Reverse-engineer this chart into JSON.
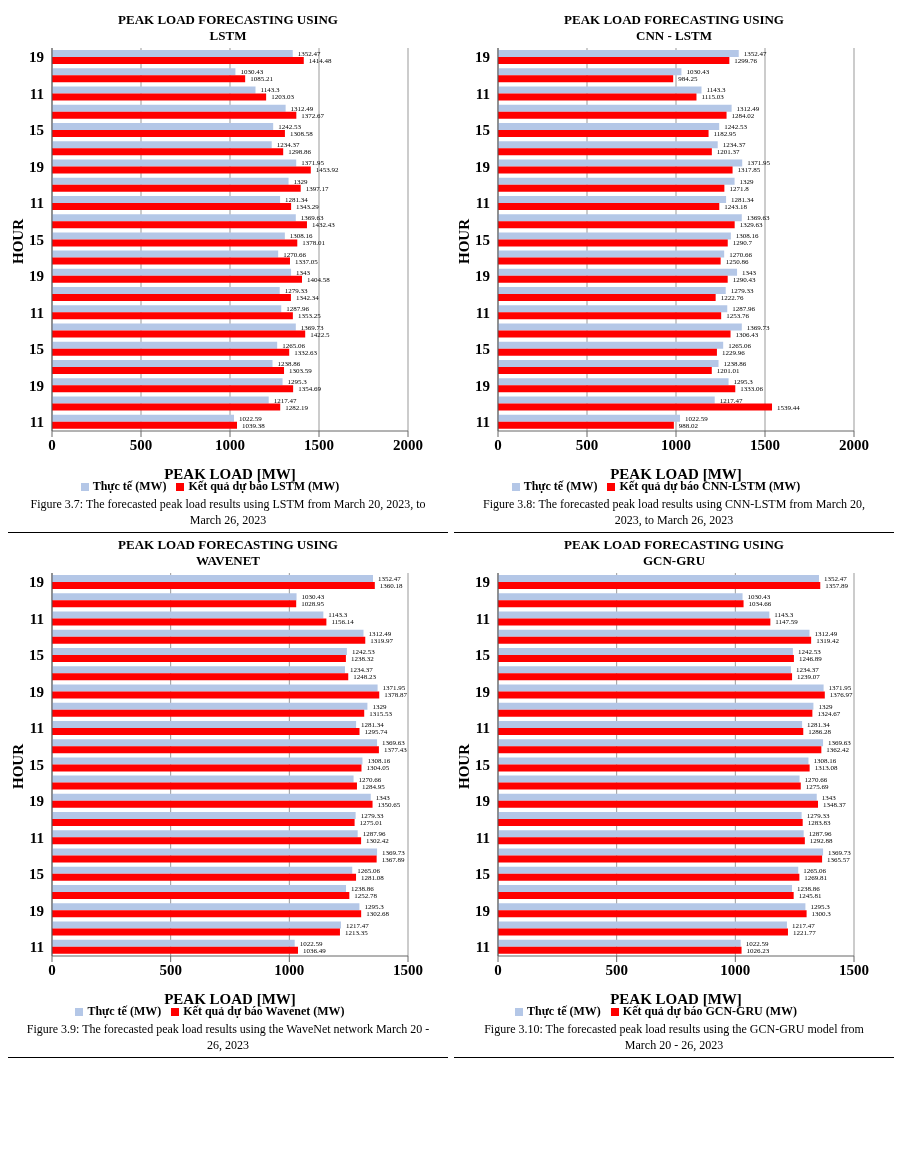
{
  "chart_data": [
    {
      "type": "bar",
      "orientation": "horizontal",
      "title": "PEAK LOAD FORECASTING USING LSTM",
      "xlabel": "PEAK LOAD [MW]",
      "ylabel": "HOUR",
      "categories": [
        "19",
        null,
        "11",
        null,
        "15",
        null,
        "19",
        null,
        "11",
        null,
        "15",
        null,
        "19",
        null,
        "11",
        null,
        "15",
        null,
        "19",
        null,
        "11"
      ],
      "series": [
        {
          "name": "Thực tế (MW)",
          "color": "#b4c7e7",
          "values": [
            1352.47,
            1030.43,
            1143.3,
            1312.49,
            1242.53,
            1234.37,
            1371.95,
            1329,
            1281.34,
            1369.63,
            1308.16,
            1270.66,
            1343,
            1279.33,
            1287.96,
            1369.73,
            1265.06,
            1238.86,
            1295.3,
            1217.47,
            1022.59
          ]
        },
        {
          "name": "Kết quả dự báo LSTM (MW)",
          "color": "#ff0000",
          "values": [
            1414.48,
            1085.21,
            1203.03,
            1372.67,
            1308.58,
            1298.86,
            1453.92,
            1397.17,
            1343.29,
            1432.43,
            1378.01,
            1337.05,
            1404.58,
            1342.34,
            1353.25,
            1422.5,
            1332.63,
            1303.59,
            1354.69,
            1282.19,
            1039.38
          ]
        }
      ],
      "xlim": [
        0,
        2000
      ],
      "xticks": [
        0,
        500,
        1000,
        1500,
        2000
      ],
      "grid": "x",
      "legend": "bottom",
      "data_labels": true,
      "annotations": [
        "Figure 3.7: The forecasted peak load results using LSTM from March 20, 2023, to March 26, 2023"
      ]
    },
    {
      "type": "bar",
      "orientation": "horizontal",
      "title": "PEAK LOAD FORECASTING USING CNN - LSTM",
      "xlabel": "PEAK LOAD [MW]",
      "ylabel": "HOUR",
      "categories": [
        "19",
        null,
        "11",
        null,
        "15",
        null,
        "19",
        null,
        "11",
        null,
        "15",
        null,
        "19",
        null,
        "11",
        null,
        "15",
        null,
        "19",
        null,
        "11"
      ],
      "series": [
        {
          "name": "Thực tế (MW)",
          "color": "#b4c7e7",
          "values": [
            1352.47,
            1030.43,
            1143.3,
            1312.49,
            1242.53,
            1234.37,
            1371.95,
            1329,
            1281.34,
            1369.63,
            1308.16,
            1270.66,
            1343,
            1279.33,
            1287.96,
            1369.73,
            1265.06,
            1238.86,
            1295.3,
            1217.47,
            1022.59
          ]
        },
        {
          "name": "Kết quả dự báo CNN-LSTM (MW)",
          "color": "#ff0000",
          "values": [
            1299.76,
            984.25,
            1115.03,
            1284.02,
            1182.95,
            1201.37,
            1317.85,
            1271.8,
            1243.18,
            1329.63,
            1290.7,
            1250.86,
            1290.43,
            1222.76,
            1253.76,
            1306.43,
            1229.96,
            1201.01,
            1333.06,
            1539.44,
            988.02
          ]
        }
      ],
      "xlim": [
        0,
        2000
      ],
      "xticks": [
        0,
        500,
        1000,
        1500,
        2000
      ],
      "grid": "x",
      "legend": "bottom",
      "data_labels": true,
      "annotations": [
        "Figure 3.8: The forecasted peak load results using CNN-LSTM from March 20, 2023, to March 26, 2023"
      ]
    },
    {
      "type": "bar",
      "orientation": "horizontal",
      "title": "PEAK LOAD FORECASTING USING WAVENET",
      "xlabel": "PEAK LOAD [MW]",
      "ylabel": "HOUR",
      "categories": [
        "19",
        null,
        "11",
        null,
        "15",
        null,
        "19",
        null,
        "11",
        null,
        "15",
        null,
        "19",
        null,
        "11",
        null,
        "15",
        null,
        "19",
        null,
        "11"
      ],
      "series": [
        {
          "name": "Thực tế (MW)",
          "color": "#b4c7e7",
          "values": [
            1352.47,
            1030.43,
            1143.3,
            1312.49,
            1242.53,
            1234.37,
            1371.95,
            1329,
            1281.34,
            1369.63,
            1308.16,
            1270.66,
            1343,
            1279.33,
            1287.96,
            1369.73,
            1265.06,
            1238.86,
            1295.3,
            1217.47,
            1022.59
          ]
        },
        {
          "name": "Kết quả dự báo Wavenet (MW)",
          "color": "#ff0000",
          "values": [
            1360.18,
            1028.95,
            1156.14,
            1319.97,
            1238.32,
            1248.23,
            1378.87,
            1315.53,
            1295.74,
            1377.43,
            1304.05,
            1284.95,
            1350.65,
            1275.01,
            1302.42,
            1367.89,
            1281.08,
            1252.78,
            1302.68,
            1213.35,
            1036.49
          ]
        }
      ],
      "xlim": [
        0,
        1500
      ],
      "xticks": [
        0,
        500,
        1000,
        1500
      ],
      "grid": "x",
      "legend": "bottom",
      "data_labels": true,
      "annotations": [
        "Figure 3.9: The forecasted peak load results using the WaveNet network March 20 - 26, 2023"
      ]
    },
    {
      "type": "bar",
      "orientation": "horizontal",
      "title": "PEAK LOAD FORECASTING USING GCN-GRU",
      "xlabel": "PEAK LOAD [MW]",
      "ylabel": "HOUR",
      "categories": [
        "19",
        null,
        "11",
        null,
        "15",
        null,
        "19",
        null,
        "11",
        null,
        "15",
        null,
        "19",
        null,
        "11",
        null,
        "15",
        null,
        "19",
        null,
        "11"
      ],
      "series": [
        {
          "name": "Thực tế (MW)",
          "color": "#b4c7e7",
          "values": [
            1352.47,
            1030.43,
            1143.3,
            1312.49,
            1242.53,
            1234.37,
            1371.95,
            1329,
            1281.34,
            1369.63,
            1308.16,
            1270.66,
            1343,
            1279.33,
            1287.96,
            1369.73,
            1265.06,
            1238.86,
            1295.3,
            1217.47,
            1022.59
          ]
        },
        {
          "name": "Kết quả dự báo GCN-GRU (MW)",
          "color": "#ff0000",
          "values": [
            1357.89,
            1034.66,
            1147.59,
            1319.42,
            1246.89,
            1239.07,
            1376.97,
            1324.67,
            1286.28,
            1362.42,
            1313.08,
            1275.69,
            1348.37,
            1283.83,
            1292.88,
            1365.57,
            1269.81,
            1245.81,
            1300.3,
            1221.77,
            1026.23
          ]
        }
      ],
      "xlim": [
        0,
        1500
      ],
      "xticks": [
        0,
        500,
        1000,
        1500
      ],
      "grid": "x",
      "legend": "bottom",
      "data_labels": true,
      "annotations": [
        "Figure 3.10: The forecasted peak load results using the GCN-GRU model from March 20 - 26, 2023"
      ]
    }
  ]
}
